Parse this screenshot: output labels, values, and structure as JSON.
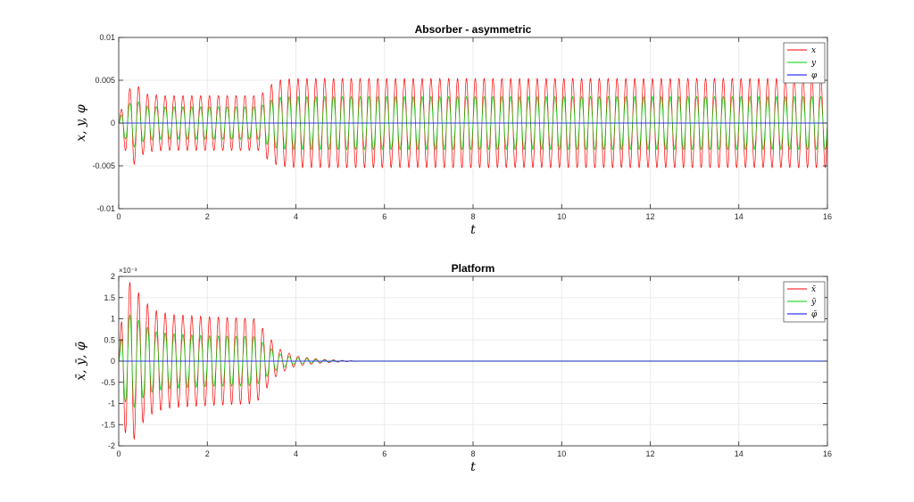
{
  "chart_data": [
    {
      "type": "line",
      "title": "Absorber - asymmetric",
      "xlabel": "t",
      "ylabel": "x, y, φ",
      "xlim": [
        0,
        16
      ],
      "ylim": [
        -0.01,
        0.01
      ],
      "xticks": [
        0,
        2,
        4,
        6,
        8,
        10,
        12,
        14,
        16
      ],
      "xtick_labels": [
        "0",
        "2",
        "4",
        "6",
        "8",
        "10",
        "12",
        "14",
        "16"
      ],
      "yticks": [
        -0.01,
        -0.005,
        0,
        0.005,
        0.01
      ],
      "ytick_labels": [
        "-0.01",
        "-0.005",
        "0",
        "0.005",
        "0.01"
      ],
      "grid": true,
      "legend_position": "top-right",
      "series": [
        {
          "name": "x",
          "color": "#ff0000",
          "frequency": 5.0,
          "envelope_t": [
            0,
            0.1,
            0.35,
            0.6,
            1.0,
            2.0,
            3.2,
            3.35,
            3.6,
            3.9,
            16
          ],
          "envelope_amp": [
            0,
            0.0028,
            0.0048,
            0.0034,
            0.0032,
            0.0032,
            0.0032,
            0.0042,
            0.005,
            0.0052,
            0.0052
          ]
        },
        {
          "name": "y",
          "color": "#00cc00",
          "frequency": 5.0,
          "envelope_t": [
            0,
            0.1,
            0.35,
            0.6,
            1.0,
            2.0,
            3.2,
            3.35,
            3.6,
            3.9,
            16
          ],
          "envelope_amp": [
            0,
            0.0016,
            0.0028,
            0.002,
            0.0019,
            0.0019,
            0.0019,
            0.0025,
            0.003,
            0.0031,
            0.0031
          ]
        },
        {
          "name": "φ",
          "color": "#0000ff",
          "frequency": 0,
          "envelope_t": [
            0,
            16
          ],
          "envelope_amp": [
            0,
            0
          ]
        }
      ]
    },
    {
      "type": "line",
      "title": "Platform",
      "xlabel": "t",
      "ylabel": "x̄, ȳ, φ̄",
      "y_exponent_label": "×10⁻³",
      "xlim": [
        0,
        16
      ],
      "ylim": [
        -2,
        2
      ],
      "xticks": [
        0,
        2,
        4,
        6,
        8,
        10,
        12,
        14,
        16
      ],
      "xtick_labels": [
        "0",
        "2",
        "4",
        "6",
        "8",
        "10",
        "12",
        "14",
        "16"
      ],
      "yticks": [
        -2,
        -1.5,
        -1,
        -0.5,
        0,
        0.5,
        1,
        1.5,
        2
      ],
      "ytick_labels": [
        "-2",
        "-1.5",
        "-1",
        "-0.5",
        "0",
        "0.5",
        "1",
        "1.5",
        "2"
      ],
      "grid": true,
      "legend_position": "top-right",
      "series": [
        {
          "name": "x̄",
          "color": "#ff0000",
          "frequency": 5.0,
          "envelope_t": [
            0,
            0.1,
            0.3,
            0.5,
            0.8,
            1.2,
            2.0,
            3.1,
            3.3,
            3.6,
            4.0,
            4.5,
            5.0,
            5.5,
            16
          ],
          "envelope_amp": [
            0,
            1.6,
            1.95,
            1.5,
            1.2,
            1.1,
            1.05,
            1.0,
            0.7,
            0.3,
            0.12,
            0.05,
            0.02,
            0.0,
            0.0
          ]
        },
        {
          "name": "ȳ",
          "color": "#00cc00",
          "frequency": 5.0,
          "envelope_t": [
            0,
            0.1,
            0.3,
            0.5,
            0.8,
            1.2,
            2.0,
            3.1,
            3.3,
            3.6,
            4.0,
            4.5,
            5.0,
            5.5,
            16
          ],
          "envelope_amp": [
            0,
            0.9,
            1.15,
            0.9,
            0.7,
            0.65,
            0.6,
            0.58,
            0.4,
            0.18,
            0.07,
            0.03,
            0.01,
            0.0,
            0.0
          ]
        },
        {
          "name": "φ̄",
          "color": "#0000ff",
          "frequency": 0,
          "envelope_t": [
            0,
            16
          ],
          "envelope_amp": [
            0,
            0
          ]
        }
      ]
    }
  ]
}
